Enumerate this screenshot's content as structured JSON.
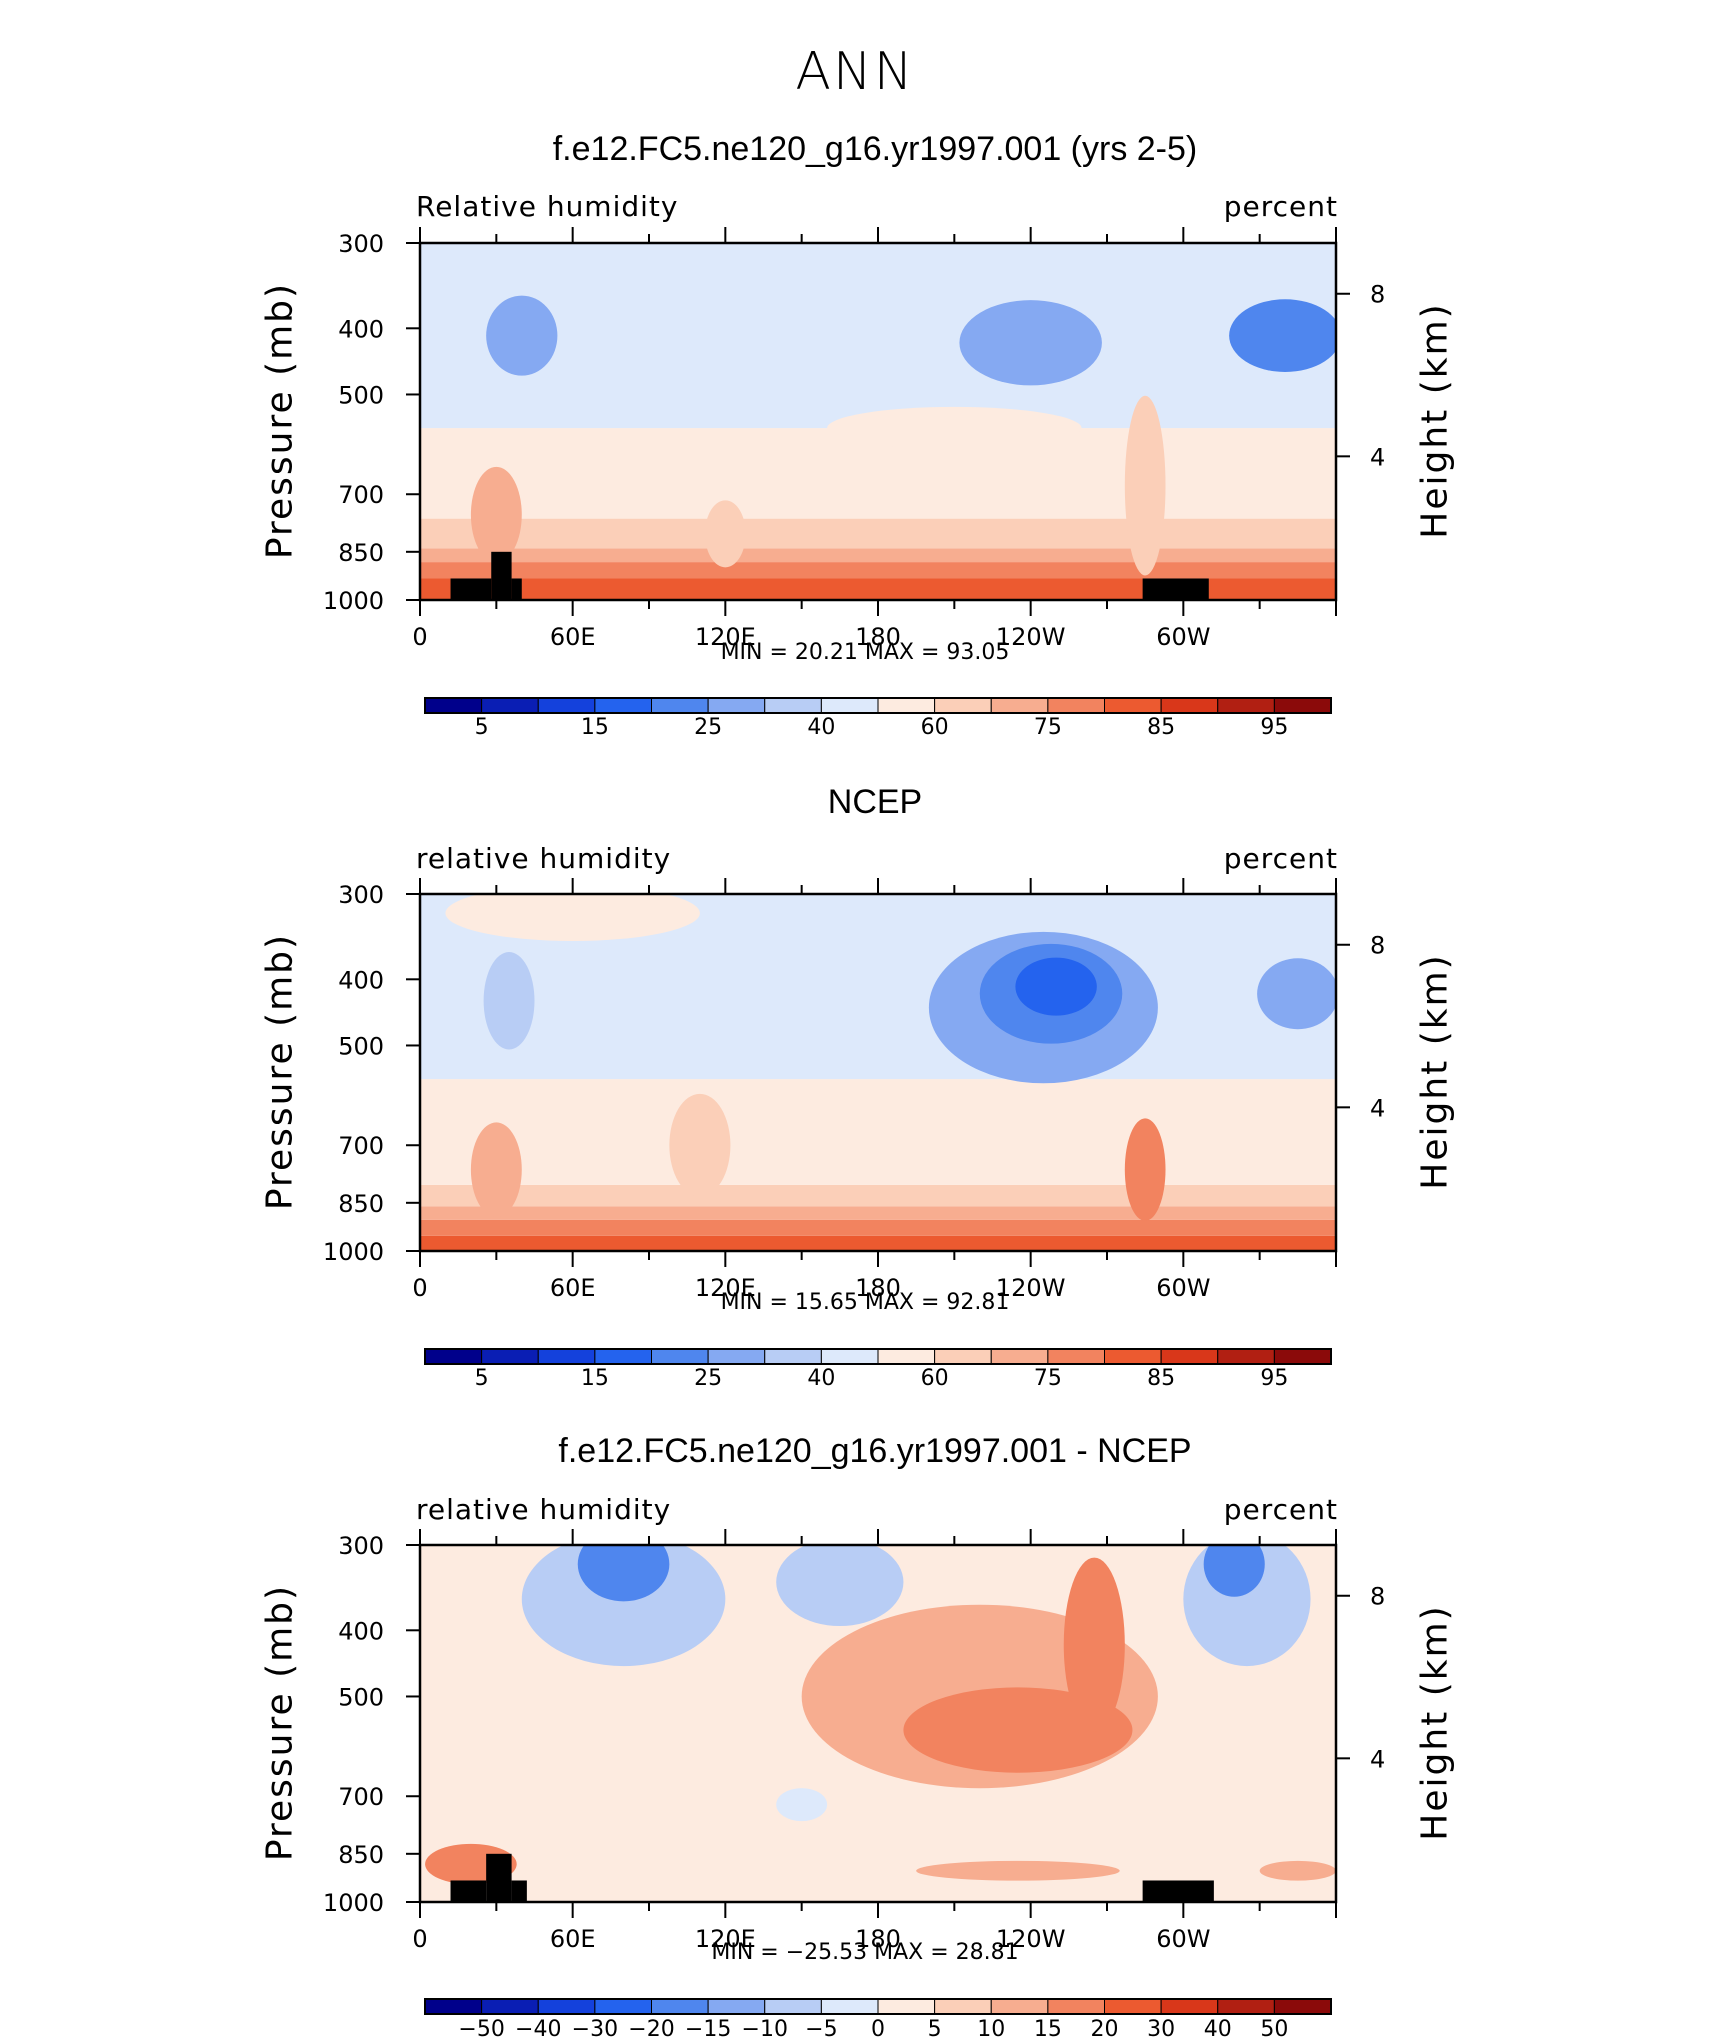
{
  "figure": {
    "title": "ANN",
    "colors": {
      "abs_levels": [
        "#00008b",
        "#0a1eb4",
        "#1441dc",
        "#2463ee",
        "#4f86ee",
        "#85a9f2",
        "#b8cdf5",
        "#dde9fb",
        "#fdebe0",
        "#fbcfb8",
        "#f7ad90",
        "#f2835f",
        "#ec5a30",
        "#d9371a",
        "#b11f12",
        "#8b0a0a"
      ],
      "diff_levels": [
        "#00008b",
        "#0a1eb4",
        "#1441dc",
        "#2463ee",
        "#4f86ee",
        "#85a9f2",
        "#b8cdf5",
        "#dde9fb",
        "#fdebe0",
        "#fbcfb8",
        "#f7ad90",
        "#f2835f",
        "#ec5a30",
        "#d9371a",
        "#b11f12",
        "#8b0a0a"
      ],
      "terrain": "#000000"
    }
  },
  "chart_data": [
    {
      "type": "heatmap",
      "title": "f.e12.FC5.ne120_g16.yr1997.001 (yrs 2-5)",
      "left_label": "Relative  humidity",
      "right_label": "percent",
      "ylabel": "Pressure  (mb)",
      "ylabel_right": "Height  (km)",
      "x_ticks": [
        "0",
        "60E",
        "120E",
        "180",
        "120W",
        "60W"
      ],
      "y_ticks": [
        "300",
        "400",
        "500",
        "700",
        "850",
        "1000"
      ],
      "y2_ticks": [
        "8",
        "4"
      ],
      "min_text": "MIN  =    20.21    MAX  =    93.05",
      "min": 20.21,
      "max": 93.05,
      "colorbar_labels": [
        "5",
        "15",
        "25",
        "40",
        "60",
        "75",
        "85",
        "95"
      ],
      "xlim": [
        0,
        360
      ],
      "ylim": [
        1000,
        300
      ],
      "bands": [
        {
          "from": 1000,
          "to": 930,
          "level": 12
        },
        {
          "from": 930,
          "to": 880,
          "level": 11
        },
        {
          "from": 880,
          "to": 840,
          "level": 10
        },
        {
          "from": 840,
          "to": 760,
          "level": 9
        },
        {
          "from": 760,
          "to": 560,
          "level": 8
        },
        {
          "from": 560,
          "to": 300,
          "level": 7
        }
      ],
      "blobs": [
        {
          "lon": 40,
          "p": 410,
          "rlon": 14,
          "rp": 55,
          "level": 5
        },
        {
          "lon": 240,
          "p": 420,
          "rlon": 28,
          "rp": 60,
          "level": 5
        },
        {
          "lon": 340,
          "p": 410,
          "rlon": 22,
          "rp": 50,
          "level": 4
        },
        {
          "lon": 30,
          "p": 750,
          "rlon": 10,
          "rp": 120,
          "level": 10
        },
        {
          "lon": 285,
          "p": 680,
          "rlon": 8,
          "rp": 200,
          "level": 9
        },
        {
          "lon": 120,
          "p": 800,
          "rlon": 8,
          "rp": 90,
          "level": 9
        },
        {
          "lon": 210,
          "p": 560,
          "rlon": 50,
          "rp": 40,
          "level": 8
        }
      ],
      "terrain": [
        [
          12,
          28,
          930
        ],
        [
          28,
          36,
          850
        ],
        [
          36,
          40,
          930
        ],
        [
          284,
          310,
          930
        ]
      ]
    },
    {
      "type": "heatmap",
      "title": "NCEP",
      "left_label": "relative  humidity",
      "right_label": "percent",
      "ylabel": "Pressure  (mb)",
      "ylabel_right": "Height  (km)",
      "x_ticks": [
        "0",
        "60E",
        "120E",
        "180",
        "120W",
        "60W"
      ],
      "y_ticks": [
        "300",
        "400",
        "500",
        "700",
        "850",
        "1000"
      ],
      "y2_ticks": [
        "8",
        "4"
      ],
      "min_text": "MIN  =    15.65    MAX  =    92.81",
      "min": 15.65,
      "max": 92.81,
      "colorbar_labels": [
        "5",
        "15",
        "25",
        "40",
        "60",
        "75",
        "85",
        "95"
      ],
      "xlim": [
        0,
        360
      ],
      "ylim": [
        1000,
        300
      ],
      "bands": [
        {
          "from": 1000,
          "to": 950,
          "level": 12
        },
        {
          "from": 950,
          "to": 900,
          "level": 11
        },
        {
          "from": 900,
          "to": 860,
          "level": 10
        },
        {
          "from": 860,
          "to": 800,
          "level": 9
        },
        {
          "from": 800,
          "to": 560,
          "level": 8
        },
        {
          "from": 560,
          "to": 300,
          "level": 7
        }
      ],
      "blobs": [
        {
          "lon": 245,
          "p": 440,
          "rlon": 45,
          "rp": 110,
          "level": 5
        },
        {
          "lon": 248,
          "p": 420,
          "rlon": 28,
          "rp": 70,
          "level": 4
        },
        {
          "lon": 250,
          "p": 410,
          "rlon": 16,
          "rp": 40,
          "level": 3
        },
        {
          "lon": 345,
          "p": 420,
          "rlon": 16,
          "rp": 50,
          "level": 5
        },
        {
          "lon": 35,
          "p": 430,
          "rlon": 10,
          "rp": 70,
          "level": 6
        },
        {
          "lon": 30,
          "p": 760,
          "rlon": 10,
          "rp": 120,
          "level": 10
        },
        {
          "lon": 285,
          "p": 760,
          "rlon": 8,
          "rp": 130,
          "level": 11
        },
        {
          "lon": 110,
          "p": 700,
          "rlon": 12,
          "rp": 120,
          "level": 9
        },
        {
          "lon": 60,
          "p": 320,
          "rlon": 50,
          "rp": 30,
          "level": 8
        }
      ],
      "terrain": []
    },
    {
      "type": "heatmap",
      "title": "f.e12.FC5.ne120_g16.yr1997.001 - NCEP",
      "left_label": "relative  humidity",
      "right_label": "percent",
      "ylabel": "Pressure  (mb)",
      "ylabel_right": "Height  (km)",
      "x_ticks": [
        "0",
        "60E",
        "120E",
        "180",
        "120W",
        "60W"
      ],
      "y_ticks": [
        "300",
        "400",
        "500",
        "700",
        "850",
        "1000"
      ],
      "y2_ticks": [
        "8",
        "4"
      ],
      "min_text": "MIN  =  −25.53    MAX  =    28.81",
      "min": -25.53,
      "max": 28.81,
      "colorbar_labels": [
        "−50",
        "−40",
        "−30",
        "−20",
        "−15",
        "−10",
        "−5",
        "0",
        "5",
        "10",
        "15",
        "20",
        "30",
        "40",
        "50"
      ],
      "xlim": [
        0,
        360
      ],
      "ylim": [
        1000,
        300
      ],
      "bands": [
        {
          "from": 1000,
          "to": 300,
          "level": 8
        }
      ],
      "blobs": [
        {
          "lon": 80,
          "p": 360,
          "rlon": 40,
          "rp": 80,
          "level": 6
        },
        {
          "lon": 80,
          "p": 320,
          "rlon": 18,
          "rp": 40,
          "level": 4
        },
        {
          "lon": 165,
          "p": 340,
          "rlon": 25,
          "rp": 50,
          "level": 6
        },
        {
          "lon": 325,
          "p": 360,
          "rlon": 25,
          "rp": 80,
          "level": 6
        },
        {
          "lon": 320,
          "p": 320,
          "rlon": 12,
          "rp": 35,
          "level": 4
        },
        {
          "lon": 220,
          "p": 500,
          "rlon": 70,
          "rp": 150,
          "level": 10
        },
        {
          "lon": 235,
          "p": 560,
          "rlon": 45,
          "rp": 80,
          "level": 11
        },
        {
          "lon": 265,
          "p": 420,
          "rlon": 12,
          "rp": 120,
          "level": 11
        },
        {
          "lon": 20,
          "p": 880,
          "rlon": 18,
          "rp": 60,
          "level": 11
        },
        {
          "lon": 235,
          "p": 900,
          "rlon": 40,
          "rp": 30,
          "level": 10
        },
        {
          "lon": 345,
          "p": 900,
          "rlon": 15,
          "rp": 30,
          "level": 10
        },
        {
          "lon": 150,
          "p": 720,
          "rlon": 10,
          "rp": 40,
          "level": 7
        }
      ],
      "terrain": [
        [
          12,
          26,
          930
        ],
        [
          26,
          36,
          850
        ],
        [
          36,
          42,
          930
        ],
        [
          284,
          312,
          930
        ]
      ]
    }
  ]
}
